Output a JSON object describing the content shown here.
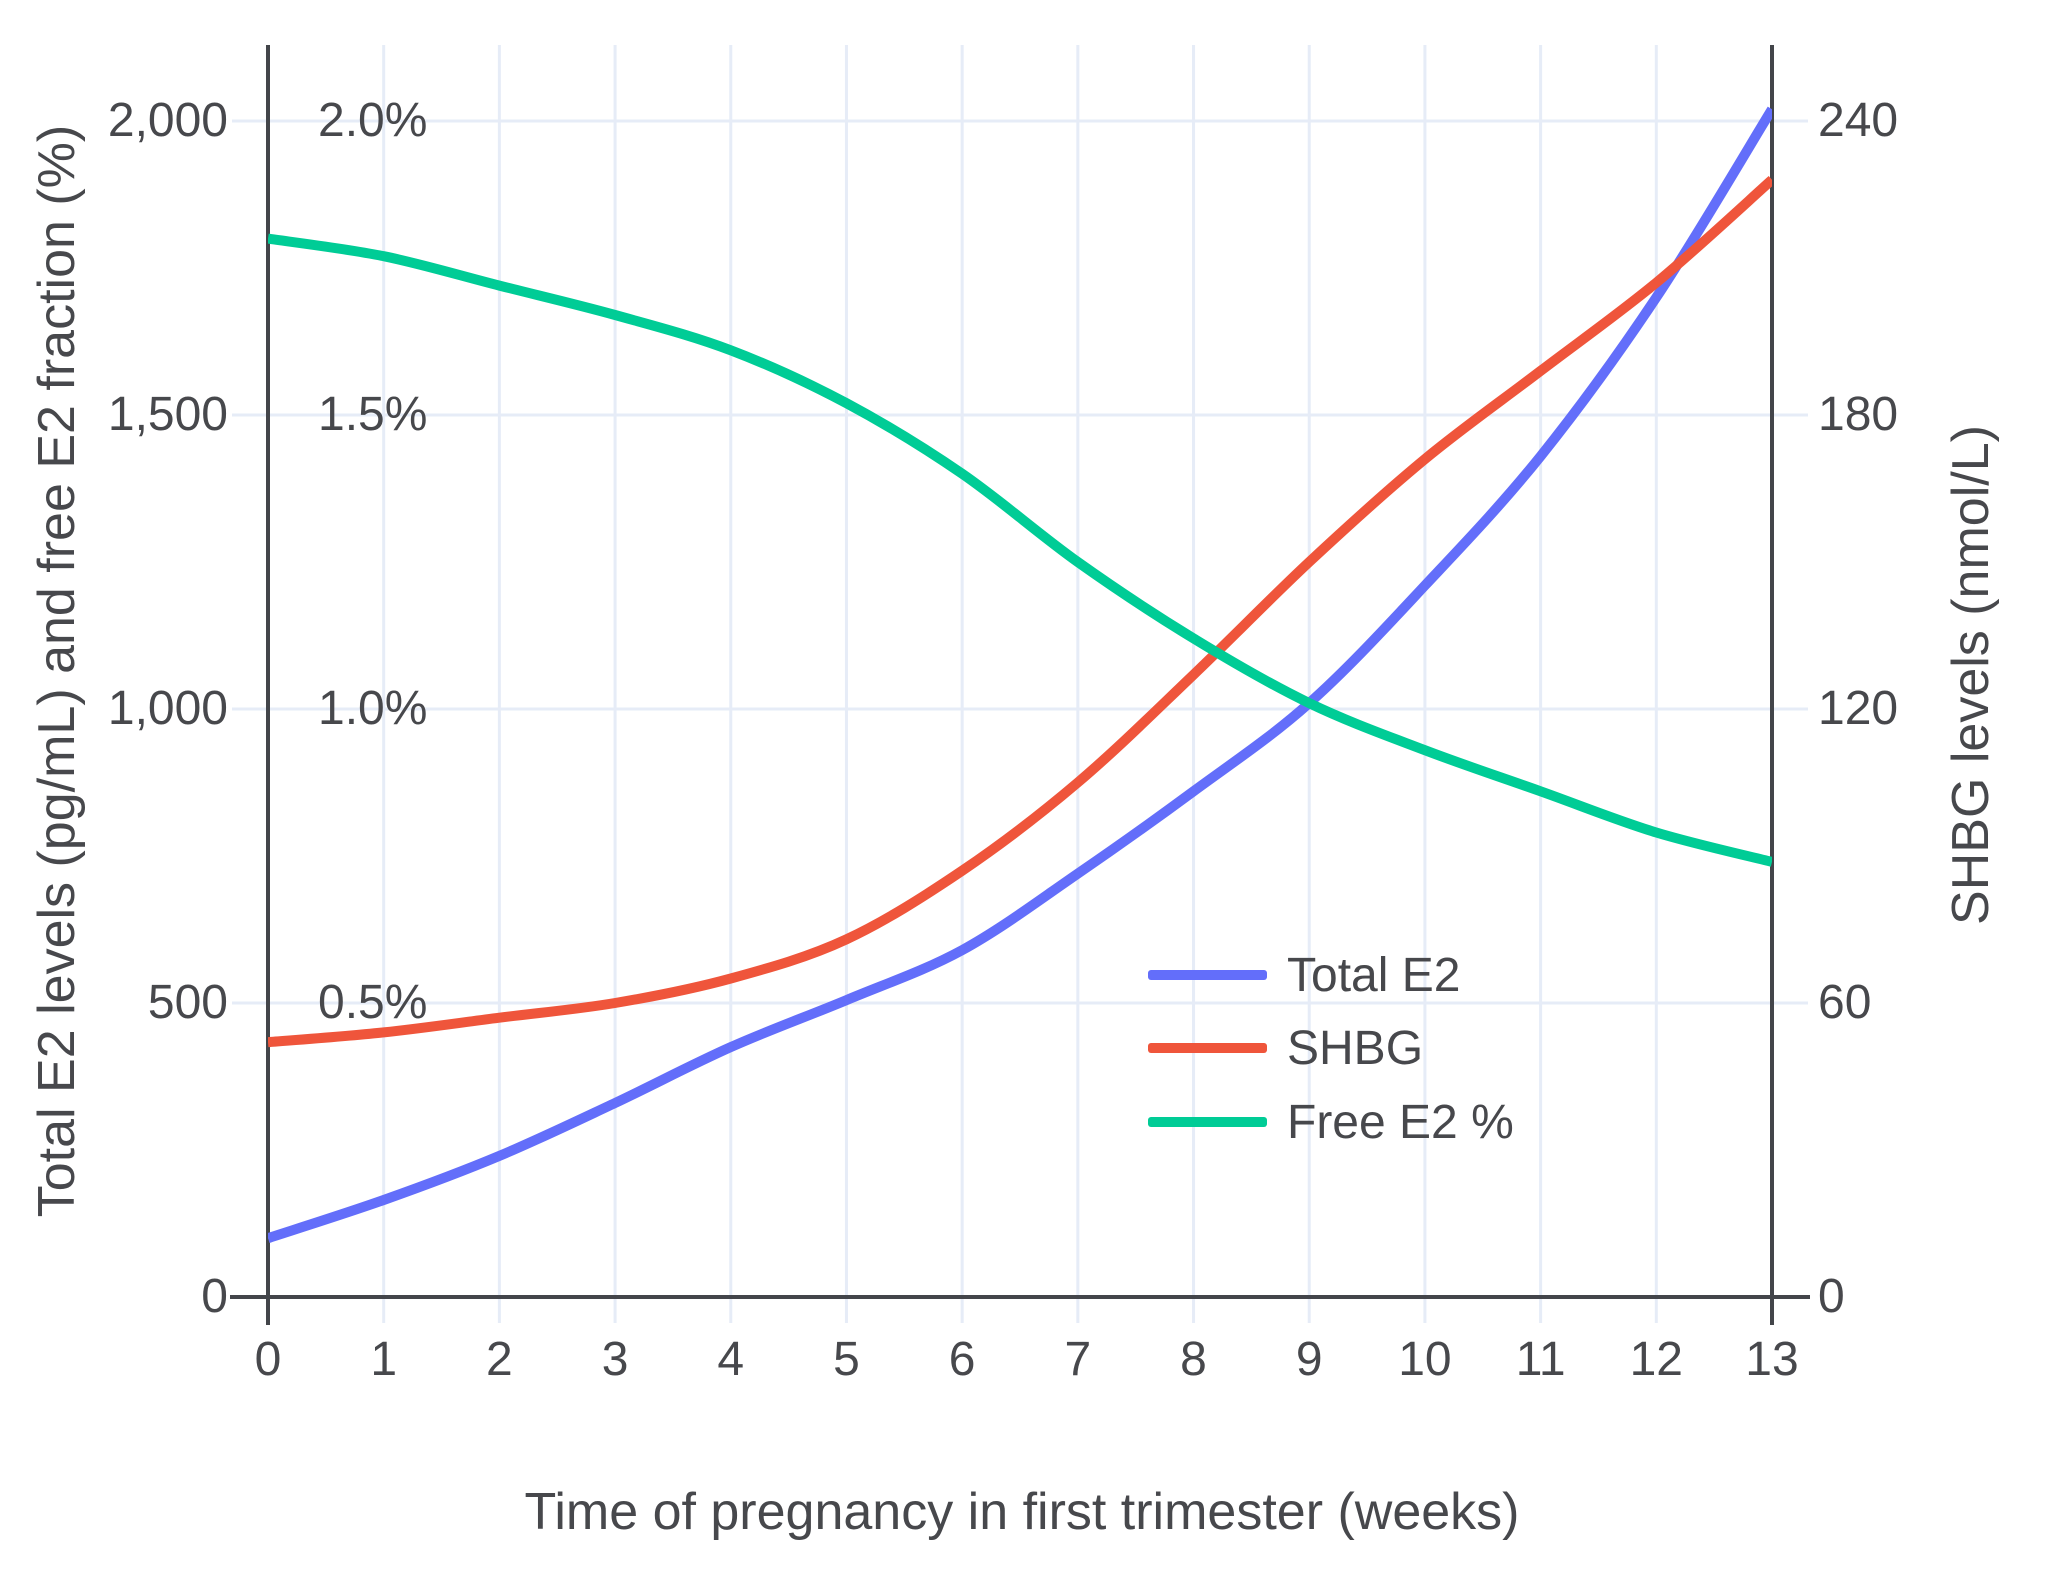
{
  "chart_data": {
    "type": "line",
    "title": "",
    "xlabel": "Time of pregnancy in first trimester (weeks)",
    "x": [
      0,
      1,
      2,
      3,
      4,
      5,
      6,
      7,
      8,
      9,
      10,
      11,
      12,
      13
    ],
    "x_tick_labels": [
      "0",
      "1",
      "2",
      "3",
      "4",
      "5",
      "6",
      "7",
      "8",
      "9",
      "10",
      "11",
      "12",
      "13"
    ],
    "x_range": [
      0,
      13
    ],
    "grid": true,
    "legend_position": "inside-bottom-right",
    "left_axis": {
      "label": "Total E2 levels (pg/mL) and free E2 fraction (%)",
      "tick_labels": [
        "0",
        "500",
        "1,000",
        "1,500",
        "2,000"
      ],
      "tick_values": [
        0,
        500,
        1000,
        1500,
        2000
      ],
      "pct_tick_labels": [
        "0.5%",
        "1.0%",
        "1.5%",
        "2.0%"
      ],
      "pct_tick_values": [
        0.5,
        1.0,
        1.5,
        2.0
      ],
      "range": [
        0,
        2130
      ]
    },
    "right_axis": {
      "label": "SHBG levels (nmol/L)",
      "tick_labels": [
        "0",
        "60",
        "120",
        "180",
        "240"
      ],
      "tick_values": [
        0,
        60,
        120,
        180,
        240
      ],
      "range": [
        0,
        255
      ]
    },
    "series": [
      {
        "name": "Total E2",
        "axis": "left",
        "units": "pg/mL",
        "color": "#636EFA",
        "values": [
          100,
          165,
          240,
          330,
          425,
          505,
          590,
          720,
          860,
          1010,
          1210,
          1430,
          1700,
          2020
        ]
      },
      {
        "name": "SHBG",
        "axis": "right",
        "units": "nmol/L",
        "color": "#EF553B",
        "values": [
          52,
          54,
          57,
          60,
          65,
          73,
          87,
          105,
          127,
          150,
          171,
          189,
          207,
          228
        ]
      },
      {
        "name": "Free E2 %",
        "axis": "left-percent",
        "units": "%",
        "color": "#00CC96",
        "values": [
          1.8,
          1.77,
          1.72,
          1.67,
          1.61,
          1.52,
          1.4,
          1.25,
          1.12,
          1.01,
          0.93,
          0.86,
          0.79,
          0.74
        ]
      }
    ]
  },
  "legend": {
    "items": [
      {
        "label": "Total E2"
      },
      {
        "label": "SHBG"
      },
      {
        "label": "Free E2 %"
      }
    ]
  },
  "colors": {
    "grid": "#E6ECF7",
    "axis": "#43454A",
    "text": "#47484C",
    "background": "#FFFFFF"
  }
}
